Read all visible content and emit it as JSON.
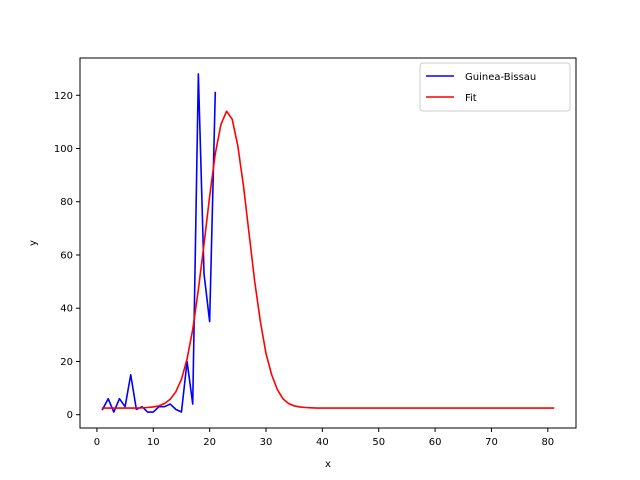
{
  "chart_data": {
    "type": "line",
    "xlabel": "x",
    "ylabel": "y",
    "xlim": [
      -3,
      85
    ],
    "ylim": [
      -5,
      134
    ],
    "xticks": [
      0,
      10,
      20,
      30,
      40,
      50,
      60,
      70,
      80
    ],
    "yticks": [
      0,
      20,
      40,
      60,
      80,
      100,
      120
    ],
    "legend_position": "top-right",
    "series": [
      {
        "name": "Guinea-Bissau",
        "color": "#0000ff",
        "x": [
          1,
          2,
          3,
          4,
          5,
          6,
          7,
          8,
          9,
          10,
          11,
          12,
          13,
          14,
          15,
          16,
          17,
          18,
          19,
          20,
          21
        ],
        "y": [
          2,
          6,
          1,
          6,
          3,
          15,
          2,
          3,
          1,
          1,
          3,
          3,
          4,
          2,
          1,
          20,
          4,
          128,
          53,
          35,
          121
        ]
      },
      {
        "name": "Fit",
        "color": "#ff0000",
        "x": [
          1,
          2,
          3,
          4,
          5,
          6,
          7,
          8,
          9,
          10,
          11,
          12,
          13,
          14,
          15,
          16,
          17,
          18,
          19,
          20,
          21,
          22,
          23,
          24,
          25,
          26,
          27,
          28,
          29,
          30,
          31,
          32,
          33,
          34,
          35,
          36,
          37,
          38,
          39,
          40,
          45,
          50,
          55,
          60,
          65,
          70,
          75,
          81
        ],
        "y": [
          2.5,
          2.5,
          2.5,
          2.5,
          2.5,
          2.5,
          2.5,
          2.6,
          2.7,
          2.9,
          3.3,
          4.2,
          5.8,
          8.6,
          13.3,
          21,
          32,
          47,
          64,
          82,
          98,
          109,
          114,
          111,
          101,
          86,
          68,
          50,
          35,
          23,
          15,
          9.5,
          6,
          4.2,
          3.3,
          2.9,
          2.7,
          2.6,
          2.5,
          2.5,
          2.5,
          2.5,
          2.5,
          2.5,
          2.5,
          2.5,
          2.5,
          2.5
        ]
      }
    ]
  }
}
